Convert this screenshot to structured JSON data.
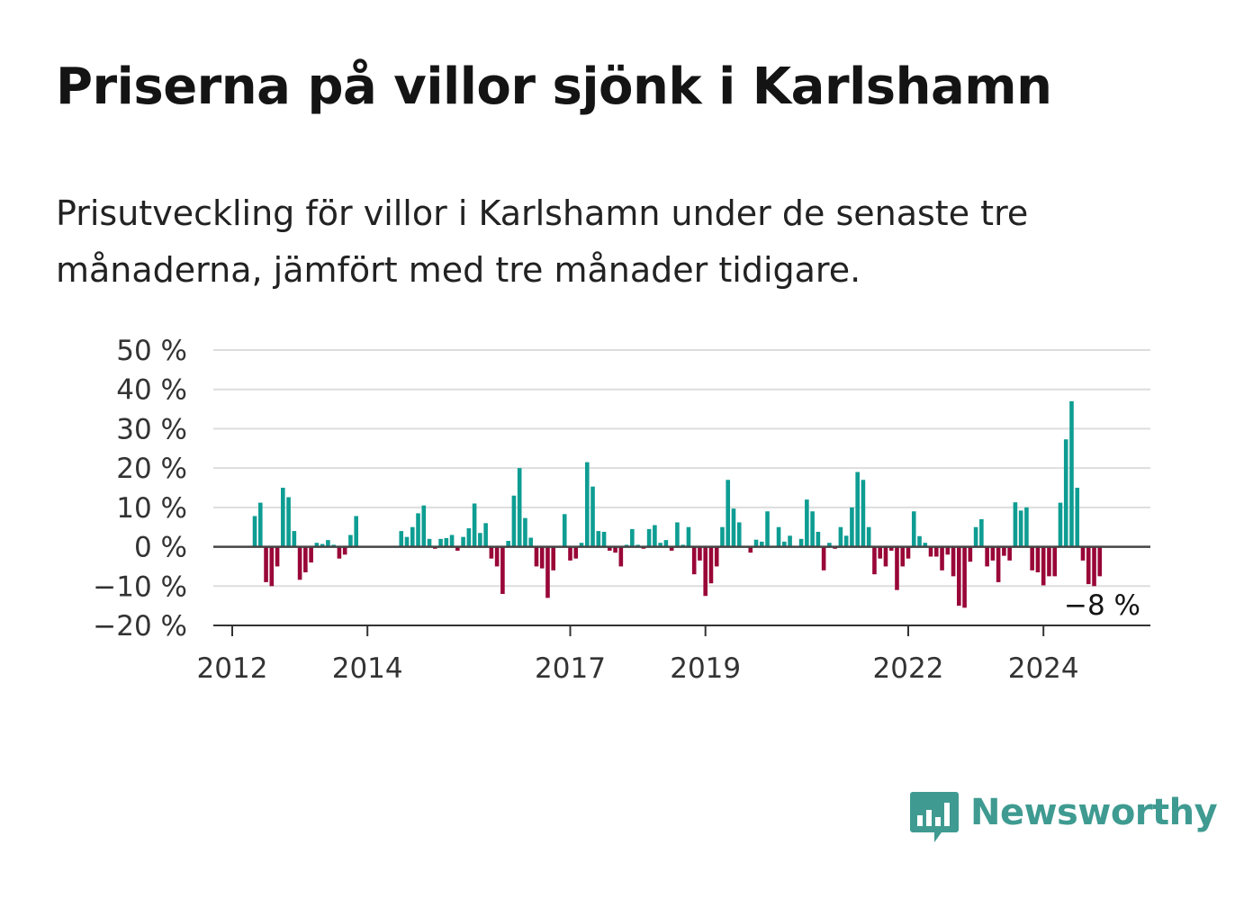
{
  "title": "Priserna på villor sjönk i Karlshamn",
  "subtitle": "Prisutveckling för villor i Karlshamn under de senaste tre månaderna, jämfört med tre månader tidigare.",
  "logo": {
    "text": "Newsworthy",
    "icon": "newsworthy-bar-chart-icon",
    "color": "#3f9b91"
  },
  "colors": {
    "positive": "#0e9d93",
    "negative": "#990637",
    "grid": "#dddddd",
    "zero": "#444444"
  },
  "chart_data": {
    "type": "bar",
    "title": "Priserna på villor sjönk i Karlshamn",
    "xlabel": "",
    "ylabel": "",
    "ylim": [
      -20,
      50
    ],
    "y_ticks": [
      50,
      40,
      30,
      20,
      10,
      0,
      -10,
      -20
    ],
    "y_tick_labels": [
      "50 %",
      "40 %",
      "30 %",
      "20 %",
      "10 %",
      "0 %",
      "−10 %",
      "−20 %"
    ],
    "x_ticks": [
      {
        "year": 2012,
        "label": "2012"
      },
      {
        "year": 2014,
        "label": "2014"
      },
      {
        "year": 2017,
        "label": "2017"
      },
      {
        "year": 2019,
        "label": "2019"
      },
      {
        "year": 2022,
        "label": "2022"
      },
      {
        "year": 2024,
        "label": "2024"
      }
    ],
    "x_range": [
      "2012-01",
      "2025-07"
    ],
    "grid": true,
    "start_month": "2012-01",
    "values": [
      null,
      null,
      null,
      null,
      7.8,
      11.2,
      -9,
      -10,
      -5,
      15,
      12.6,
      4,
      -8.4,
      -6.5,
      -4,
      1,
      0.7,
      1.7,
      0.5,
      -3,
      -2,
      3,
      7.8,
      null,
      null,
      null,
      null,
      null,
      null,
      null,
      4,
      2.5,
      5,
      8.5,
      10.5,
      2,
      -0.5,
      2,
      2.2,
      3,
      -1,
      2.5,
      4.7,
      11,
      3.5,
      6,
      -3,
      -5,
      -12,
      1.5,
      13,
      20,
      7.3,
      2.3,
      -5,
      -5.5,
      -13,
      -6,
      null,
      8.3,
      -3.5,
      -3,
      1,
      21.5,
      15.3,
      4,
      3.8,
      -1,
      -1.5,
      -5,
      0.5,
      4.5,
      0.5,
      -0.5,
      4.5,
      5.5,
      1,
      1.7,
      -1,
      6.2,
      0.5,
      5,
      -7,
      -3.5,
      -12.5,
      -9.3,
      -5,
      5,
      17,
      9.7,
      6.2,
      null,
      -1.5,
      1.8,
      1.3,
      9,
      null,
      5,
      1.3,
      2.8,
      null,
      2,
      12,
      9,
      3.8,
      -6,
      1,
      -0.5,
      5,
      2.8,
      10,
      19,
      17,
      5,
      -7,
      -3,
      -5,
      -1,
      -11,
      -5,
      -3,
      9,
      2.7,
      1,
      -2.5,
      -2.5,
      -6,
      -2,
      -7.5,
      -15,
      -15.5,
      -3.8,
      5,
      7,
      -5,
      -3.5,
      -9,
      -2.3,
      -3.5,
      11.3,
      9.2,
      10,
      -6,
      -6.5,
      -9.8,
      -7.5,
      -7.5,
      11.2,
      27.3,
      37,
      15,
      -3.5,
      -9.5,
      -10,
      -7.5,
      null,
      null,
      null,
      null,
      null,
      null,
      null,
      null,
      null,
      null,
      null,
      null
    ],
    "last_value_label": "−8 %"
  }
}
